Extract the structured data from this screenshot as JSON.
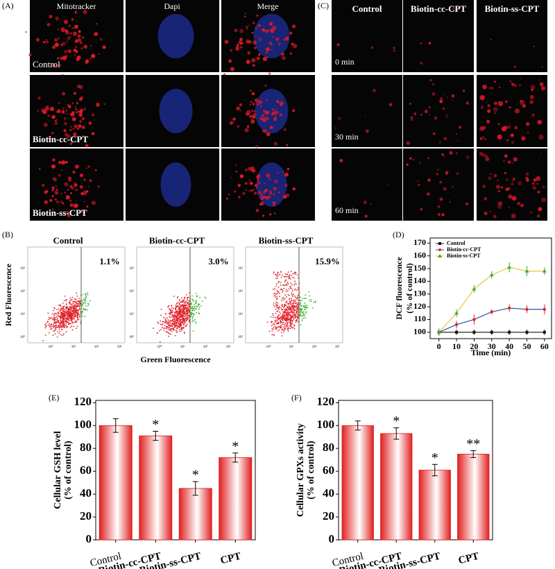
{
  "panel_letters": [
    "(A)",
    "(B)",
    "(C)",
    "(D)",
    "(E)",
    "(F)"
  ],
  "panel_a": {
    "columns": [
      "Mitotracker",
      "Dapi",
      "Merge"
    ],
    "rows": [
      "Control",
      "Biotin-cc-CPT",
      "Biotin-ss-CPT"
    ]
  },
  "panel_c": {
    "columns": [
      "Control",
      "Biotin-cc-CPT",
      "Biotin-ss-CPT"
    ],
    "rows": [
      "0 min",
      "30 min",
      "60 min"
    ]
  },
  "panel_b": {
    "titles": [
      "Control",
      "Biotin-cc-CPT",
      "Biotin-ss-CPT"
    ],
    "percentages": [
      "1.1%",
      "3.0%",
      "15.9%"
    ],
    "ylabel": "Red Fluorescence",
    "xlabel": "Green Fluorescence",
    "log_ticks": [
      "10⁰",
      "10¹",
      "10²",
      "10³"
    ]
  },
  "chart_data": [
    {
      "type": "line",
      "x": [
        0,
        10,
        20,
        30,
        40,
        50,
        60
      ],
      "xlim": [
        -5,
        64
      ],
      "xticks": [
        0,
        10,
        20,
        30,
        40,
        50,
        60
      ],
      "ylim": [
        95,
        174
      ],
      "yticks": [
        100,
        110,
        120,
        130,
        140,
        150,
        160,
        170
      ],
      "xlabel": "Time (min)",
      "ylabel": [
        "DCF fluorescence",
        "(% of control)"
      ],
      "legend": "top-left",
      "series": [
        {
          "name": "Control",
          "color": "#111111",
          "line_color": "#111111",
          "marker": "square",
          "values": [
            100,
            100,
            100,
            100,
            100,
            100,
            100
          ],
          "errors": [
            2,
            2,
            2,
            2,
            2,
            2,
            2
          ]
        },
        {
          "name": "Biotin-cc-CPT",
          "color": "#d62a2a",
          "line_color": "#2a4fa0",
          "marker": "circle",
          "values": [
            100,
            106,
            110,
            116,
            119,
            118,
            118
          ],
          "errors": [
            2,
            3,
            4,
            2,
            3,
            3,
            4
          ]
        },
        {
          "name": "Biotin-ss-CPT",
          "color": "#3aa832",
          "line_color": "#e8c62a",
          "marker": "triangle",
          "values": [
            100,
            115,
            134,
            145,
            151,
            148,
            148
          ],
          "errors": [
            3,
            3,
            3,
            3,
            4,
            4,
            3
          ]
        }
      ]
    },
    {
      "type": "bar",
      "categories": [
        "Control",
        "Biotin-cc-CPT",
        "Biotin-ss-CPT",
        "CPT"
      ],
      "values": [
        100,
        91,
        45,
        72
      ],
      "errors": [
        6,
        4,
        6,
        4
      ],
      "significance": [
        null,
        "*",
        "*",
        "*"
      ],
      "color": "#e02020",
      "ylim": [
        0,
        122
      ],
      "yticks": [
        0,
        20,
        40,
        60,
        80,
        100,
        120
      ],
      "ylabel": [
        "Cellular  GSH level",
        "(% of control)"
      ]
    },
    {
      "type": "bar",
      "categories": [
        "Control",
        "Biotin-cc-CPT",
        "Biotin-ss-CPT",
        "CPT"
      ],
      "values": [
        100,
        93,
        61,
        75
      ],
      "errors": [
        4,
        5,
        5,
        3
      ],
      "significance": [
        null,
        "*",
        "*",
        "**"
      ],
      "color": "#e02020",
      "ylim": [
        0,
        122
      ],
      "yticks": [
        0,
        20,
        40,
        60,
        80,
        100,
        120
      ],
      "ylabel": [
        "Cellular  GPXs  activity",
        "(% of control)"
      ]
    }
  ]
}
